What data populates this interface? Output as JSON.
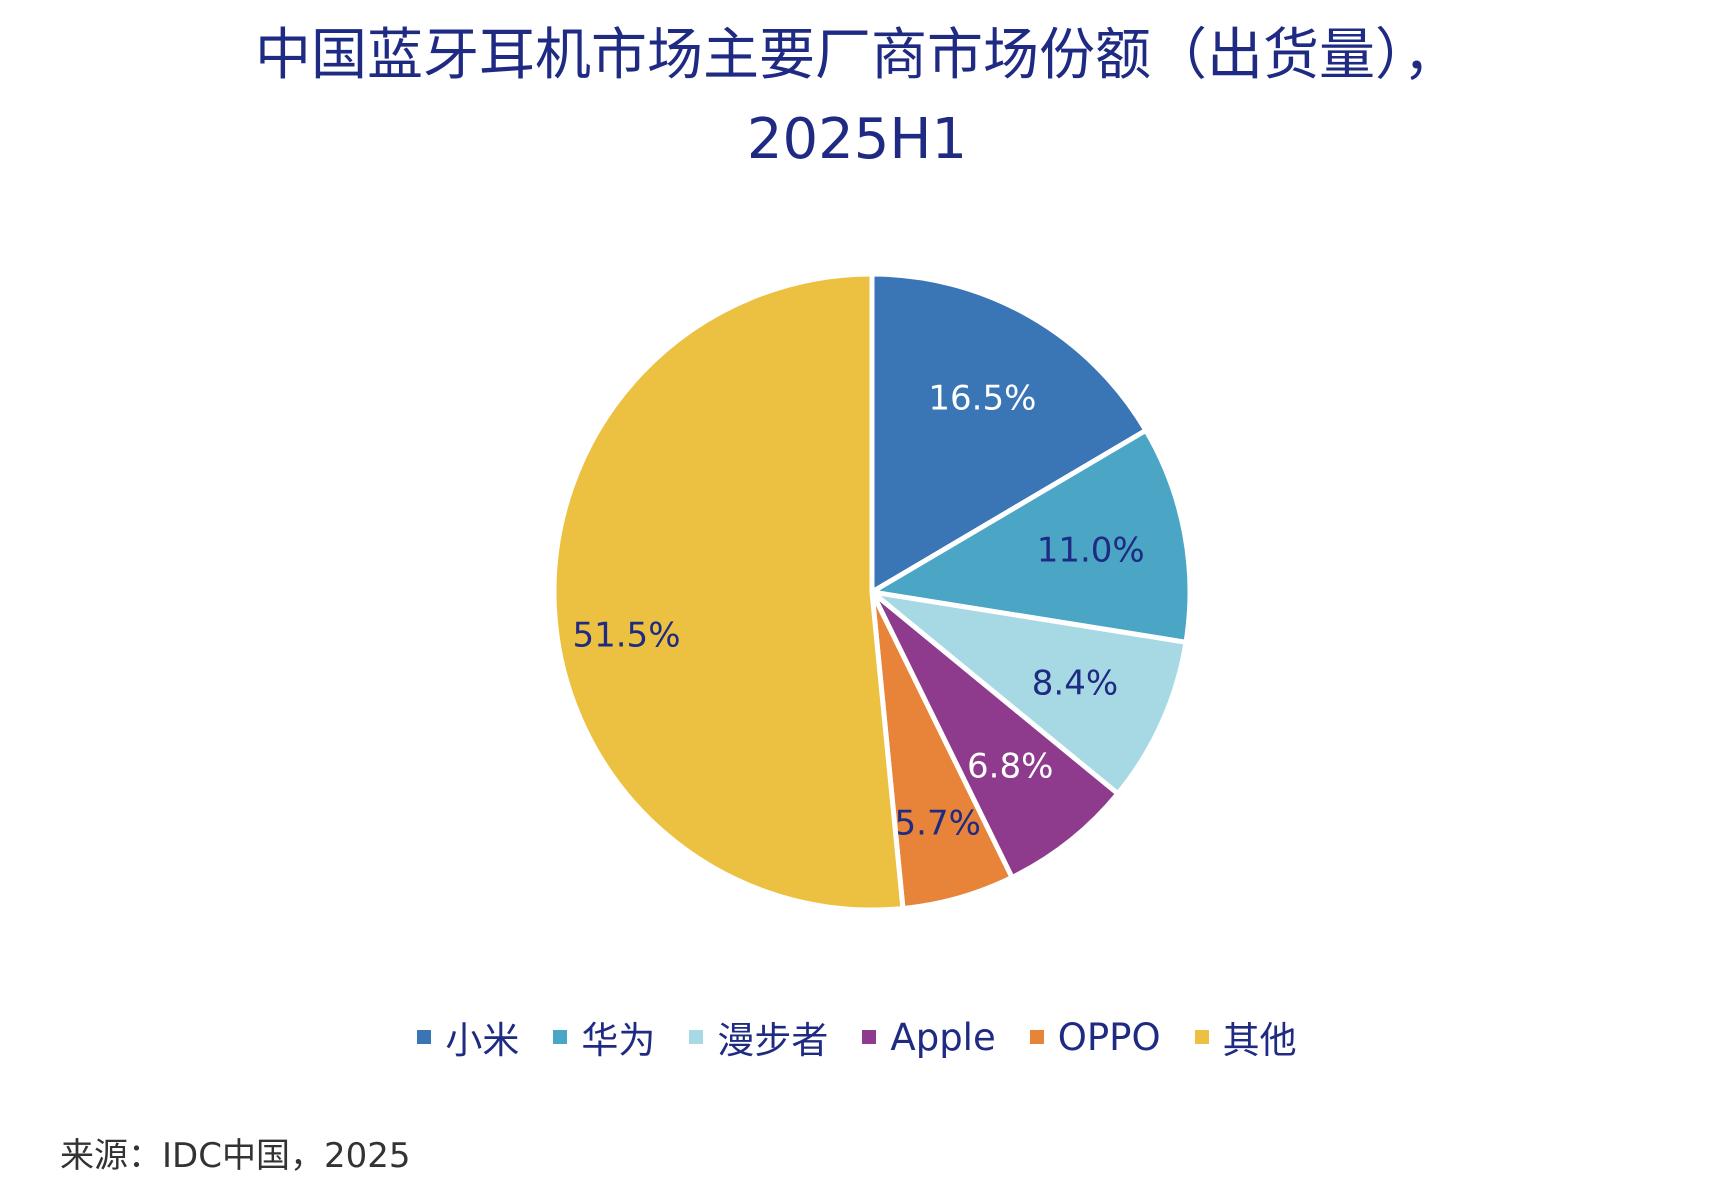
{
  "chart_data": {
    "type": "pie",
    "title": [
      "中国蓝牙耳机市场主要厂商市场份额（出货量），",
      "2025H1"
    ],
    "categories": [
      "小米",
      "华为",
      "漫步者",
      "Apple",
      "OPPO",
      "其他"
    ],
    "values": [
      16.5,
      11.0,
      8.4,
      6.8,
      5.7,
      51.5
    ],
    "value_labels": [
      "16.5%",
      "11.0%",
      "8.4%",
      "6.8%",
      "5.7%",
      "51.5%"
    ],
    "colors": [
      "#3a75b5",
      "#4aa6c4",
      "#a6d9e3",
      "#8e3b8e",
      "#e8833a",
      "#ecc040"
    ],
    "label_colors": [
      "#ffffff",
      "#1f2a83",
      "#1f2a83",
      "#ffffff",
      "#1f2a83",
      "#1f2a83"
    ],
    "legend_position": "bottom",
    "start": "top",
    "direction": "clockwise"
  },
  "source": "来源：IDC中国，2025"
}
